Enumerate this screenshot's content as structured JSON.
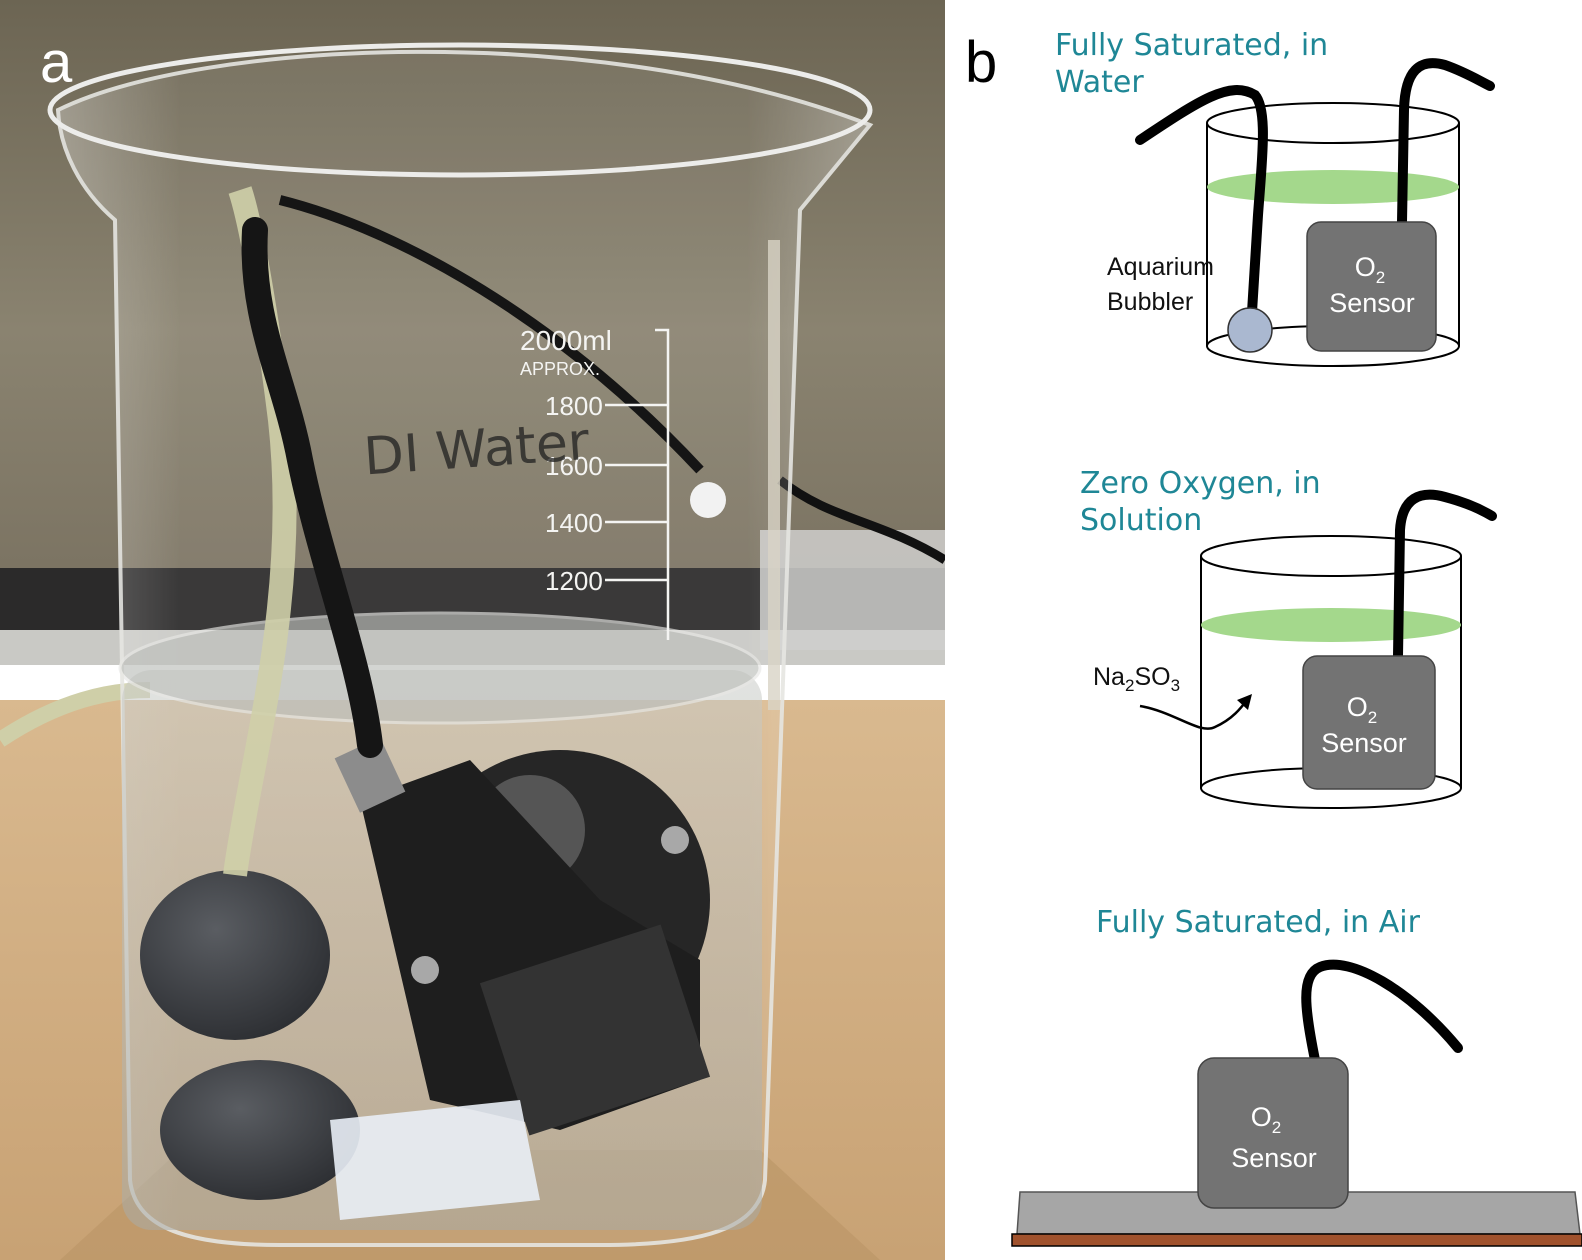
{
  "panels": {
    "a": {
      "label": "a"
    },
    "b": {
      "label": "b"
    }
  },
  "photo": {
    "beaker_markings": {
      "top": "2000ml",
      "approx": "APPROX.",
      "ticks": [
        "1800",
        "1600",
        "1400",
        "1200"
      ]
    },
    "handwriting": "DI Water"
  },
  "diagram": {
    "sections": [
      {
        "title_line1": "Fully Saturated, in",
        "title_line2": "Water"
      },
      {
        "title_line1": "Zero Oxygen, in",
        "title_line2": "Solution"
      },
      {
        "title_line1": "Fully Saturated, in Air"
      }
    ],
    "sensor": {
      "o_letter": "O",
      "subscript": "2",
      "word": "Sensor"
    },
    "bubbler": {
      "line1": "Aquarium",
      "line2": "Bubbler"
    },
    "chemical": {
      "na": "Na",
      "na_sub": "2",
      "so": "SO",
      "so_sub": "3"
    }
  },
  "colors": {
    "title_teal": "#1f8796",
    "sensor_gray": "#737373",
    "water_green": "#a4d88c",
    "bubbler_blue": "#aab8d0",
    "surface_gray": "#a6a6a6",
    "surface_brown": "#a0522d"
  }
}
